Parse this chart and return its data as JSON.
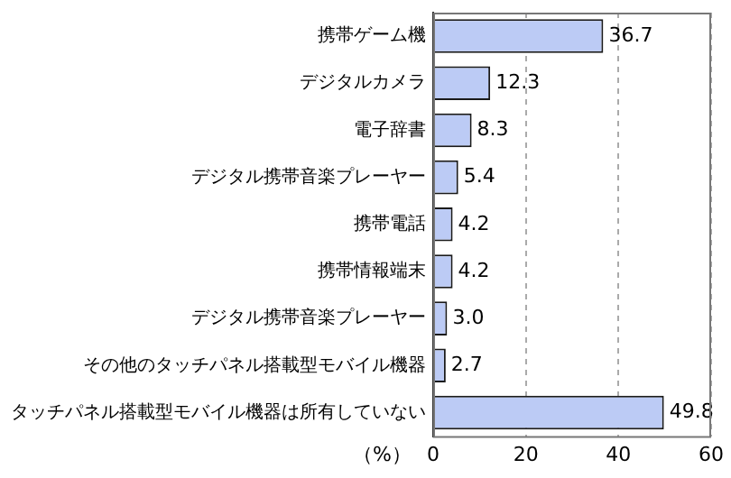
{
  "chart_data": {
    "type": "bar",
    "orientation": "horizontal",
    "xlabel": "（%）",
    "categories": [
      "携帯ゲーム機",
      "デジタルカメラ",
      "電子辞書",
      "デジタル携帯音楽プレーヤー",
      "携帯電話",
      "携帯情報端末",
      "デジタル携帯音楽プレーヤー",
      "その他のタッチパネル搭載型モバイル機器",
      "タッチパネル搭載型モバイル機器は所有していない"
    ],
    "values": [
      36.7,
      12.3,
      8.3,
      5.4,
      4.2,
      4.2,
      3.0,
      2.7,
      49.8
    ],
    "value_labels": [
      "36.7",
      "12.3",
      "8.3",
      "5.4",
      "4.2",
      "4.2",
      "3.0",
      "2.7",
      "49.8"
    ],
    "color": "#bccbf5",
    "xlim": [
      0,
      60
    ],
    "xticks": [
      0,
      20,
      40,
      60
    ],
    "grid": "x",
    "legend": false
  }
}
